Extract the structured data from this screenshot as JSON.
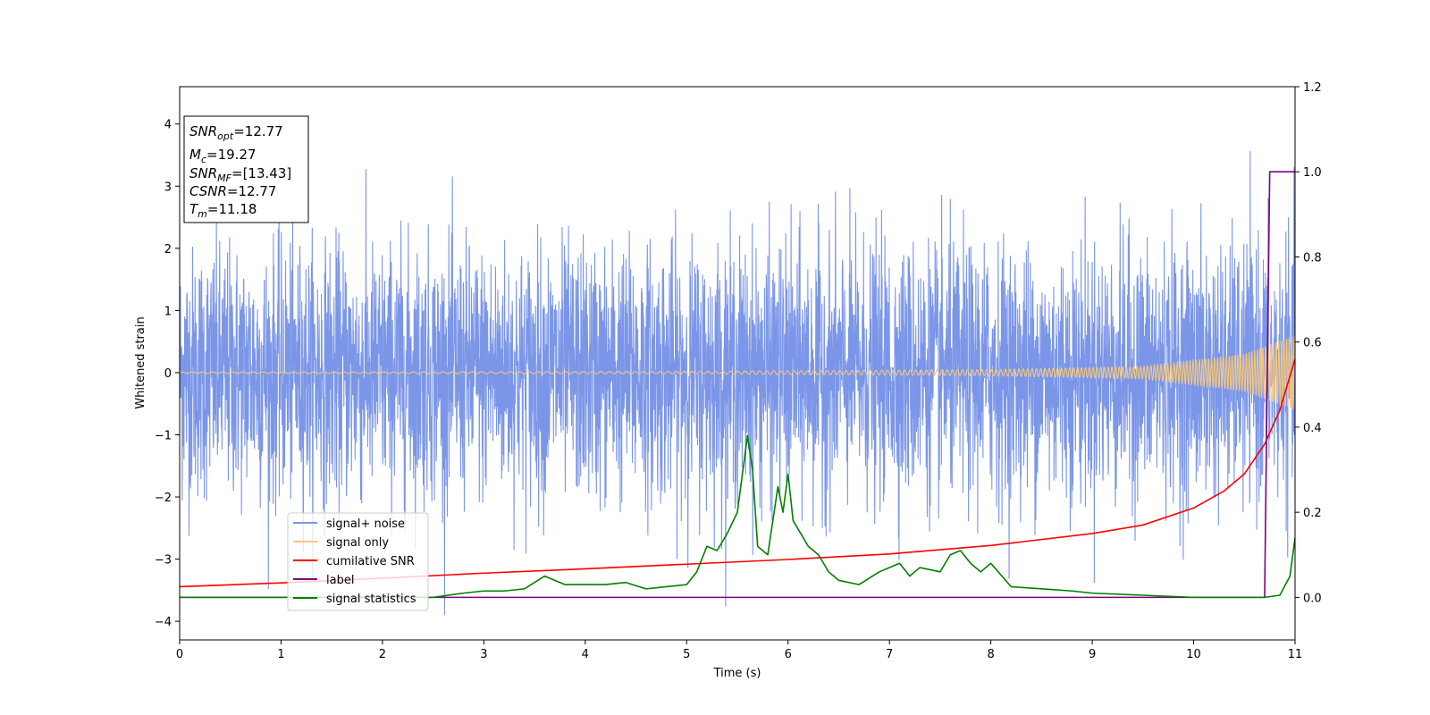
{
  "chart_data": {
    "type": "line",
    "xlabel": "Time (s)",
    "ylabel": "Whitened strain",
    "xlim": [
      0,
      11
    ],
    "ylim": [
      -4.3,
      4.6
    ],
    "y2lim": [
      -0.1,
      1.2
    ],
    "x_ticks": [
      0,
      1,
      2,
      3,
      4,
      5,
      6,
      7,
      8,
      9,
      10,
      11
    ],
    "y_ticks": [
      -4,
      -3,
      -2,
      -1,
      0,
      1,
      2,
      3,
      4
    ],
    "y2_ticks": [
      0.0,
      0.2,
      0.4,
      0.6,
      0.8,
      1.0,
      1.2
    ],
    "y2_tick_labels": [
      "0.0",
      "0.2",
      "0.4",
      "0.6",
      "0.8",
      "1.0",
      "1.2"
    ],
    "grid": false,
    "legend_position": "lower-left",
    "annotation_box": {
      "position": "top-left",
      "lines": [
        {
          "label": "SNR",
          "sub": "opt",
          "value": "=12.77"
        },
        {
          "label": "M",
          "sub": "c",
          "value": "=19.27"
        },
        {
          "label": "SNR",
          "sub": "MF",
          "value": "=[13.43]"
        },
        {
          "label": "CSNR",
          "sub": "",
          "value": "=12.77"
        },
        {
          "label": "T",
          "sub": "m",
          "value": "=11.18"
        }
      ]
    },
    "series": [
      {
        "name": "signal+ noise",
        "axis": "left",
        "color": "#7b96e8",
        "description_kind": "noise",
        "amplitude_std": 1.0,
        "range": [
          -3.9,
          3.8
        ]
      },
      {
        "name": "signal only",
        "axis": "left",
        "color": "#f5c77e",
        "description_kind": "chirp",
        "envelope": {
          "x": [
            0,
            5,
            8,
            9.5,
            10.5,
            11
          ],
          "y": [
            0.01,
            0.02,
            0.05,
            0.1,
            0.3,
            0.6
          ]
        }
      },
      {
        "name": "cumilative SNR",
        "axis": "right",
        "color": "#ff0000",
        "x": [
          0,
          1,
          2,
          3,
          4,
          5,
          6,
          7,
          8,
          9,
          9.5,
          10,
          10.3,
          10.5,
          10.7,
          10.85,
          11
        ],
        "y": [
          0.025,
          0.034,
          0.045,
          0.057,
          0.067,
          0.078,
          0.089,
          0.102,
          0.122,
          0.15,
          0.17,
          0.21,
          0.25,
          0.29,
          0.36,
          0.44,
          0.56
        ]
      },
      {
        "name": "label",
        "axis": "right",
        "color": "#800080",
        "x": [
          0,
          10.7,
          10.75,
          11
        ],
        "y": [
          0.0,
          0.0,
          1.0,
          1.0
        ]
      },
      {
        "name": "signal statistics",
        "axis": "right",
        "color": "#008000",
        "x": [
          0,
          0.5,
          1,
          1.5,
          2,
          2.5,
          2.8,
          3,
          3.2,
          3.4,
          3.6,
          3.8,
          4,
          4.2,
          4.4,
          4.6,
          4.8,
          5,
          5.1,
          5.2,
          5.3,
          5.4,
          5.5,
          5.6,
          5.65,
          5.7,
          5.8,
          5.9,
          5.95,
          6.0,
          6.05,
          6.1,
          6.2,
          6.3,
          6.4,
          6.5,
          6.7,
          6.9,
          7.1,
          7.2,
          7.3,
          7.5,
          7.6,
          7.7,
          7.8,
          7.9,
          8.0,
          8.2,
          8.5,
          8.8,
          9.0,
          9.5,
          10,
          10.5,
          10.7,
          10.85,
          10.95,
          11
        ],
        "y": [
          0.0,
          0.0,
          0.0,
          0.0,
          0.0,
          0.0,
          0.01,
          0.015,
          0.015,
          0.02,
          0.05,
          0.03,
          0.03,
          0.03,
          0.035,
          0.02,
          0.025,
          0.03,
          0.06,
          0.12,
          0.11,
          0.15,
          0.2,
          0.38,
          0.3,
          0.12,
          0.1,
          0.26,
          0.2,
          0.29,
          0.18,
          0.16,
          0.12,
          0.1,
          0.06,
          0.04,
          0.03,
          0.06,
          0.08,
          0.05,
          0.07,
          0.06,
          0.1,
          0.11,
          0.08,
          0.06,
          0.08,
          0.025,
          0.02,
          0.015,
          0.01,
          0.005,
          0.0,
          0.0,
          0.0,
          0.005,
          0.05,
          0.14
        ]
      }
    ]
  }
}
